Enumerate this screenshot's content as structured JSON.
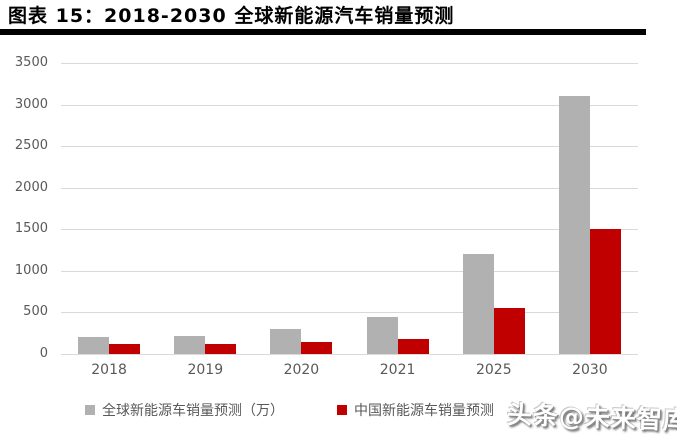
{
  "title": "图表 15：2018-2030 全球新能源汽车销量预测",
  "watermark": "头条@未来智库",
  "chart_data": {
    "type": "bar",
    "title": "图表 15：2018-2030 全球新能源汽车销量预测",
    "categories": [
      "2018",
      "2019",
      "2020",
      "2021",
      "2025",
      "2030"
    ],
    "series": [
      {
        "name": "全球新能源车销量预测（万）",
        "color": "#b1b1b1",
        "values": [
          200,
          220,
          300,
          440,
          1200,
          3100
        ]
      },
      {
        "name": "中国新能源车销量预测",
        "color": "#c00000",
        "values": [
          125,
          115,
          140,
          180,
          550,
          1500
        ]
      }
    ],
    "xlabel": "",
    "ylabel": "",
    "ylim": [
      0,
      3500
    ],
    "yticks": [
      0,
      500,
      1000,
      1500,
      2000,
      2500,
      3000,
      3500
    ],
    "grid": true,
    "legend_position": "bottom",
    "colors": {
      "grid": "#d9d9d9",
      "tick_text": "#595959",
      "title_text": "#000000",
      "title_rule": "#000000",
      "watermark_text": "#ffffff"
    }
  }
}
